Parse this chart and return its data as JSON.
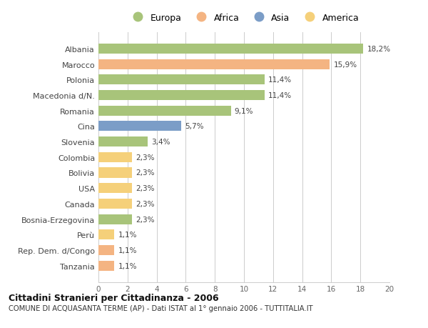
{
  "categories": [
    "Albania",
    "Marocco",
    "Polonia",
    "Macedonia d/N.",
    "Romania",
    "Cina",
    "Slovenia",
    "Colombia",
    "Bolivia",
    "USA",
    "Canada",
    "Bosnia-Erzegovina",
    "Perù",
    "Rep. Dem. d/Congo",
    "Tanzania"
  ],
  "values": [
    18.2,
    15.9,
    11.4,
    11.4,
    9.1,
    5.7,
    3.4,
    2.3,
    2.3,
    2.3,
    2.3,
    2.3,
    1.1,
    1.1,
    1.1
  ],
  "labels": [
    "18,2%",
    "15,9%",
    "11,4%",
    "11,4%",
    "9,1%",
    "5,7%",
    "3,4%",
    "2,3%",
    "2,3%",
    "2,3%",
    "2,3%",
    "2,3%",
    "1,1%",
    "1,1%",
    "1,1%"
  ],
  "colors": [
    "#a8c47a",
    "#f4b482",
    "#a8c47a",
    "#a8c47a",
    "#a8c47a",
    "#7b9dc7",
    "#a8c47a",
    "#f5d07a",
    "#f5d07a",
    "#f5d07a",
    "#f5d07a",
    "#a8c47a",
    "#f5d07a",
    "#f4b482",
    "#f4b482"
  ],
  "legend_labels": [
    "Europa",
    "Africa",
    "Asia",
    "America"
  ],
  "legend_colors": [
    "#a8c47a",
    "#f4b482",
    "#7b9dc7",
    "#f5d07a"
  ],
  "xlim": [
    0,
    20
  ],
  "xticks": [
    0,
    2,
    4,
    6,
    8,
    10,
    12,
    14,
    16,
    18,
    20
  ],
  "title1": "Cittadini Stranieri per Cittadinanza - 2006",
  "title2": "COMUNE DI ACQUASANTA TERME (AP) - Dati ISTAT al 1° gennaio 2006 - TUTTITALIA.IT",
  "bg_color": "#ffffff",
  "grid_color": "#cccccc"
}
